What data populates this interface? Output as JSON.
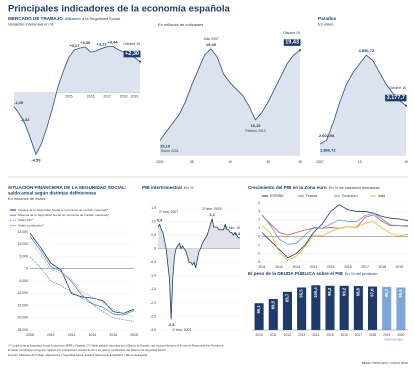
{
  "title": "Principales indicadores de la economía española",
  "footnotes": [
    "(*) Conjunto de la Seguridad Social (incluyendo SEPE y Fogasa). (**) Saldo efectivo calculado por el Banco de España, que incluye Mutuas y el Fondo de Reserva de las Pensiones.",
    "El Saldo contributivo recoge los ingresos por cotizaciones sociales frente a los gastos contributivos del Sistema de Seguridad Social."
  ],
  "source": "Fuentes: Ministerio de Trabajo, Migraciones y Seguridad Social, Instituto Nacional de Estadística y Banco de España",
  "credit": "BELÉN TRINCADO / CINCO DÍAS",
  "chart_data": [
    {
      "type": "area",
      "title": "MERCADO DE TRABAJO",
      "note": "Afiliación a la Seguridad Social",
      "subtitle": "Variación interanual en %",
      "categories": [
        null,
        null,
        null,
        null,
        null,
        null,
        "2014",
        null,
        null,
        null,
        "2015",
        null,
        null,
        null,
        "2016",
        null,
        null,
        "2017",
        null,
        null,
        "2018",
        null,
        "2019",
        null
      ],
      "series": [
        {
          "color": "#2a4f86",
          "area_color": "#dbe3ee",
          "values": [
            -1.05,
            -1.6,
            -2.32,
            -3.4,
            -4.59,
            -3.8,
            -2.6,
            -1.2,
            0.4,
            1.6,
            2.6,
            3.17,
            3.3,
            3.39,
            3.0,
            3.1,
            3.27,
            3.4,
            3.44,
            3.2,
            3.0,
            2.8,
            2.6,
            2.3
          ],
          "value_labels": [
            "-1,05",
            null,
            "-2,32",
            null,
            "-4,59",
            null,
            null,
            null,
            null,
            null,
            null,
            "+3,17",
            null,
            "+3,39",
            null,
            null,
            "+3,27",
            null,
            "+3,44",
            null,
            null,
            null,
            null,
            "+2,30"
          ]
        }
      ],
      "ylim": [
        -5,
        4.2
      ],
      "annotations": [
        "Octubre 19"
      ]
    },
    {
      "type": "area",
      "subtitle": "En millones de cotizantes",
      "categories": [
        "2001",
        null,
        null,
        null,
        null,
        "05",
        null,
        null,
        null,
        null,
        null,
        "10",
        null,
        null,
        null,
        null,
        null,
        "15",
        null,
        null,
        null,
        null,
        "19"
      ],
      "series": [
        {
          "color": "#2a4f86",
          "area_color": "#dbe3ee",
          "values": [
            15.19,
            15.6,
            16.0,
            16.4,
            17.0,
            17.8,
            18.5,
            19.2,
            19.49,
            19.1,
            18.3,
            17.9,
            17.6,
            17.3,
            16.8,
            16.15,
            16.5,
            17.0,
            17.6,
            18.2,
            18.8,
            19.2,
            19.43
          ],
          "value_labels": [
            "15,19",
            null,
            null,
            null,
            null,
            null,
            null,
            null,
            "19,49",
            null,
            null,
            null,
            null,
            null,
            null,
            "16,15",
            null,
            null,
            null,
            null,
            null,
            null,
            "19,43"
          ]
        }
      ],
      "ylim": [
        14.5,
        20
      ],
      "annotations": [
        "Enero 2001",
        "Julio 2007",
        "Febrero 2013",
        "Octubre 19"
      ]
    },
    {
      "type": "area",
      "title": "Parados",
      "subtitle": "En miles",
      "categories": [
        "2007",
        null,
        null,
        null,
        null,
        null,
        "13",
        null,
        null,
        null,
        null,
        null,
        null,
        "19"
      ],
      "series": [
        {
          "color": "#2a4f86",
          "area_color": "#dbe3ee",
          "values": [
            1866.72,
            2002.94,
            2600,
            3300,
            3900,
            4300,
            4600,
            4890.72,
            4700,
            4300,
            3900,
            3600,
            3350,
            3177.7
          ],
          "value_labels": [
            "1.866,72",
            "2.002,94",
            null,
            null,
            null,
            null,
            null,
            "4.890,72",
            null,
            null,
            null,
            null,
            null,
            "3.177,7"
          ]
        }
      ],
      "ylim": [
        1500,
        5200
      ],
      "annotations": [
        "Octubre 19"
      ]
    },
    {
      "type": "line",
      "title": "SITUACIÓN FINANCIERA DE LA SEGURIDAD SOCIAL:",
      "title2": "saldo anual según distintas definiciones",
      "subtitle": "En millones de euros",
      "categories": [
        "2008",
        null,
        "2010",
        null,
        "2012",
        null,
        "2014",
        null,
        "2016",
        null,
        "2018"
      ],
      "series": [
        {
          "name": "Fondos de la Seguridad Social (en términos de contab. nacional)*",
          "color": "#1d3a6b",
          "values": [
            14500,
            8800,
            2300,
            -600,
            -10200,
            -11500,
            -12000,
            -13000,
            -17500,
            -18200,
            -16500
          ]
        },
        {
          "name": "Sistema de la Seguridad Social (en términos de contab. nacional)*",
          "color": "#5b8cc7",
          "values": [
            13200,
            7500,
            1000,
            -1200,
            -5300,
            -10800,
            -14300,
            -15700,
            -18500,
            -18900,
            -17000
          ]
        },
        {
          "name": "Saldo SS**",
          "color": "#8fb3de",
          "dash": true,
          "values": [
            11000,
            5900,
            -300,
            -1900,
            -4500,
            -9600,
            -11500,
            -13800,
            -16400,
            -18400,
            -19600
          ]
        },
        {
          "name": "Saldo contributivo*",
          "color": "#7d8a9c",
          "dash": true,
          "values": [
            4800,
            500,
            -5000,
            -7000,
            -9500,
            -12000,
            -14500,
            -17500,
            -20000,
            -20800,
            -21500
          ]
        }
      ],
      "ylim": [
        -25000,
        15000
      ],
      "yticks": [
        {
          "value": 15000,
          "label": "15.000"
        },
        {
          "value": 10000,
          "label": "10.000"
        },
        {
          "value": 5000,
          "label": "5.000"
        },
        0,
        {
          "value": -5000,
          "label": "-5.000"
        },
        {
          "value": -10000,
          "label": "-10.000"
        },
        {
          "value": -15000,
          "label": "-15.000"
        },
        {
          "value": -20000,
          "label": "-20.000"
        },
        {
          "value": -25000,
          "label": "-25.000"
        }
      ],
      "grid": true,
      "legend": "top"
    },
    {
      "type": "area",
      "title": "PIB intertrimestral",
      "note": "En %",
      "series": [
        {
          "color": "#1d3a6b",
          "area_color": "#dfe2e8",
          "values": [
            0.8,
            0.9,
            0.7,
            0.6,
            0.3,
            0.0,
            -0.6,
            -1.1,
            -2.6,
            -1.1,
            -0.3,
            0.0,
            0.1,
            0.2,
            0.0,
            0.1,
            0.0,
            -0.1,
            -0.3,
            -0.5,
            -0.5,
            -0.6,
            -0.5,
            -0.7,
            -0.4,
            -0.1,
            0.0,
            0.2,
            0.3,
            0.4,
            0.5,
            0.7,
            0.9,
            1.1,
            0.8,
            0.8,
            0.8,
            0.7,
            0.7,
            0.7,
            0.7,
            0.9,
            0.7,
            0.7,
            0.6,
            0.6,
            0.5,
            0.6,
            0.5,
            0.4,
            0.4
          ],
          "value_labels": [
            null,
            "0,9",
            null,
            null,
            null,
            null,
            null,
            null,
            "-2,6",
            null,
            null,
            null,
            null,
            null,
            null,
            null,
            null,
            null,
            null,
            null,
            null,
            null,
            null,
            null,
            null,
            null,
            null,
            null,
            null,
            null,
            null,
            null,
            null,
            "1,1",
            null,
            null,
            null,
            null,
            null,
            null,
            null,
            null,
            null,
            null,
            null,
            null,
            null,
            null,
            null,
            null,
            "0,4"
          ]
        }
      ],
      "ylim": [
        -3,
        1.5
      ],
      "yticks": [
        {
          "value": 1.5,
          "label": "1,5"
        },
        {
          "value": 1,
          "label": "1,0"
        },
        {
          "value": 0.5,
          "label": "0,5"
        },
        0,
        {
          "value": -0.5,
          "label": "-0,5"
        },
        {
          "value": -1,
          "label": "-1,0"
        },
        {
          "value": -1.5,
          "label": "-1,5"
        },
        {
          "value": -2,
          "label": "-2,0"
        },
        {
          "value": -2.5,
          "label": "-2,5"
        },
        {
          "value": -3,
          "label": "-3,0"
        }
      ],
      "grid": true,
      "annotations": [
        "2º trim. 2007",
        "1º trim. 2009",
        "2º trim. 2015",
        "3º trim. 19"
      ]
    },
    {
      "type": "line",
      "title": "Crecimiento del PIB en la Zona euro",
      "note": "En % de variación interanual",
      "categories": [
        "2011",
        null,
        "2012",
        null,
        "2013",
        null,
        "2014",
        null,
        "2015",
        null,
        "2016",
        null,
        "2017",
        null,
        "2018",
        null,
        "2019",
        null
      ],
      "series": [
        {
          "name": "ESPAÑA",
          "color": "#1d3a6b",
          "values": [
            0.5,
            -0.5,
            -1.5,
            -2.5,
            -2.0,
            -1.0,
            0.5,
            1.5,
            3.0,
            3.8,
            3.2,
            3.0,
            3.0,
            2.8,
            2.4,
            2.2,
            2.1,
            1.9
          ]
        },
        {
          "name": "Francia",
          "color": "#d9534f",
          "values": [
            2.5,
            1.5,
            0.5,
            0.2,
            0.5,
            0.8,
            1.0,
            1.0,
            1.1,
            1.0,
            1.2,
            1.1,
            2.3,
            2.6,
            1.8,
            1.3,
            1.3,
            1.3
          ]
        },
        {
          "name": "Zona euro",
          "color": "#5b9bd5",
          "values": [
            2.6,
            1.3,
            -0.3,
            -0.9,
            -0.8,
            0.2,
            1.1,
            1.0,
            1.5,
            2.0,
            1.8,
            1.8,
            2.5,
            2.8,
            2.1,
            1.4,
            1.3,
            1.2
          ]
        },
        {
          "name": "Italia",
          "color": "#e8b923",
          "values": [
            1.3,
            0.4,
            -1.8,
            -2.8,
            -2.3,
            -1.2,
            0.2,
            0.1,
            0.6,
            1.0,
            1.2,
            1.1,
            1.6,
            1.8,
            1.0,
            0.4,
            0.1,
            0.3
          ]
        }
      ],
      "ylim": [
        -3,
        4
      ],
      "yticks": [
        4,
        3,
        2,
        1,
        0,
        -1,
        -2,
        -3
      ],
      "grid": true,
      "legend": "top"
    },
    {
      "type": "bar",
      "title": "El peso de la DEUDA PÚBLICA sobre el PIB",
      "note": "En % del producto",
      "categories": [
        "2010",
        "2011",
        "2012",
        "2013",
        "2014",
        "2015",
        "2016",
        "2017",
        "2018",
        "2019",
        "2020"
      ],
      "values": [
        60.1,
        69.5,
        85.7,
        95.5,
        100.4,
        99.3,
        99.2,
        98.6,
        97.6,
        96.7,
        95.5
      ],
      "value_labels": [
        "60,1",
        "69,5",
        "85,7",
        "95,5",
        "100,4",
        "99,3",
        "99,2",
        "98,6",
        "97,6",
        "96,7",
        "95,5"
      ],
      "colors": [
        "#1d3a6b",
        "#1d3a6b",
        "#1d3a6b",
        "#1d3a6b",
        "#1d3a6b",
        "#1d3a6b",
        "#1d3a6b",
        "#1d3a6b",
        "#1d3a6b",
        "#7da7d9",
        "#7da7d9"
      ],
      "ylim": [
        0,
        110
      ],
      "forecast_label": "PREVISIONES"
    }
  ]
}
